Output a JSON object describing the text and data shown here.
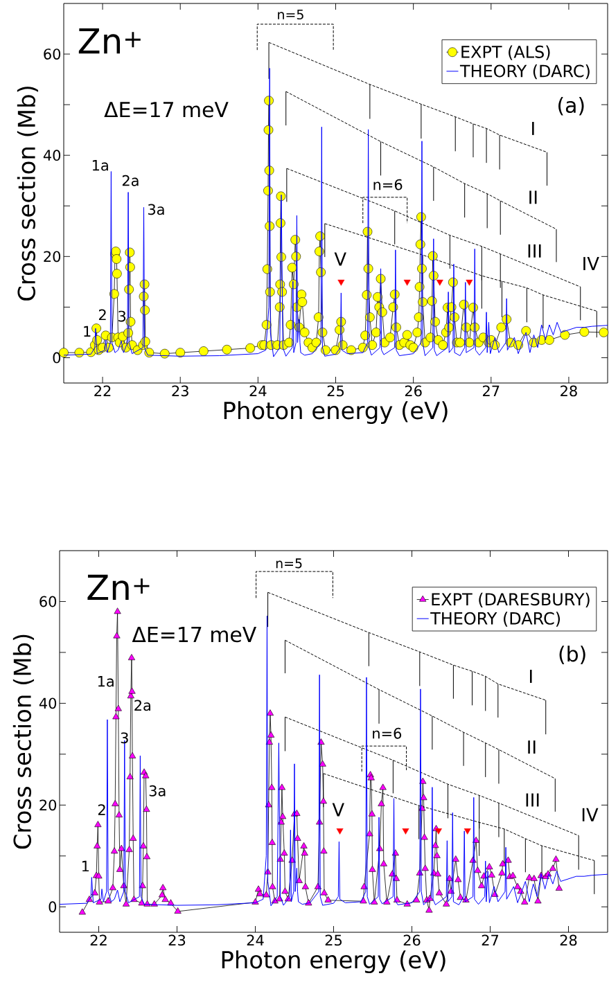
{
  "chart_data": [
    {
      "type": "line",
      "xlabel": "Photon energy (eV)",
      "ylabel": "Cross section (Mb)",
      "xlim": [
        21.5,
        28.5
      ],
      "ylim": [
        -5,
        70
      ],
      "xticks": [
        22,
        23,
        24,
        25,
        26,
        27,
        28
      ],
      "yticks": [
        0,
        {
          "value": 10,
          "label": null
        },
        20,
        {
          "value": 30,
          "label": null
        },
        40,
        {
          "value": 50,
          "label": null
        },
        60
      ],
      "legend": "top right",
      "annotations": [
        "Zn$^{+}$",
        "ΔE=17 meV",
        "(a)",
        "1a",
        "2a",
        "3a",
        "1",
        "2",
        "3",
        "n=5",
        "n=6",
        "I",
        "II",
        "III",
        "IV",
        "V"
      ],
      "series": [
        {
          "color": "#000000",
          "line_style": "dashed",
          "x": [
            24.14,
            25.44,
            26.1,
            26.54,
            26.77,
            26.94,
            27.11,
            27.72
          ],
          "values": [
            62.3,
            54.0,
            50.1,
            47.6,
            46.2,
            45.3,
            44.0,
            40.6
          ],
          "errors": [
            [
              55.1,
              62.3
            ],
            [
              47.2,
              54.0
            ],
            [
              43.3,
              50.1
            ],
            [
              40.8,
              47.6
            ],
            [
              39.6,
              46.2
            ],
            [
              38.5,
              45.3
            ],
            [
              37.2,
              44.0
            ],
            [
              34.0,
              40.6
            ]
          ]
        },
        {
          "color": "#000000",
          "line_style": "dashed",
          "x": [
            24.36,
            25.58,
            26.26,
            26.66,
            26.95,
            27.12,
            27.84
          ],
          "values": [
            52.6,
            42.7,
            37.7,
            34.4,
            32.4,
            31.0,
            25.4
          ],
          "errors": [
            [
              45.9,
              52.6
            ],
            [
              36.0,
              42.7
            ],
            [
              31.0,
              37.7
            ],
            [
              27.7,
              34.4
            ],
            [
              25.6,
              32.4
            ],
            [
              24.3,
              31.0
            ],
            [
              18.9,
              25.4
            ]
          ]
        },
        {
          "color": "#000000",
          "line_style": "dashed",
          "x": [
            24.37,
            25.76,
            26.47,
            26.88,
            27.12,
            28.15
          ],
          "values": [
            37.4,
            29.0,
            24.2,
            22.0,
            20.5,
            14.0
          ],
          "errors": [
            [
              30.8,
              37.4
            ],
            [
              22.4,
              29.0
            ],
            [
              17.6,
              24.2
            ],
            [
              15.3,
              22.0
            ],
            [
              13.8,
              20.5
            ],
            [
              7.4,
              14.0
            ]
          ]
        },
        {
          "color": "#000000",
          "line_style": "dashed",
          "x": [
            24.86,
            26.12,
            26.88,
            27.14,
            27.46,
            27.67,
            28.36
          ],
          "values": [
            26.5,
            20.3,
            16.2,
            15.1,
            13.8,
            12.4,
            9.2
          ],
          "errors": [
            [
              19.9,
              26.5
            ],
            [
              13.5,
              20.3
            ],
            [
              9.7,
              16.2
            ],
            [
              8.0,
              15.1
            ],
            [
              7.0,
              13.8
            ],
            [
              5.8,
              12.4
            ],
            [
              4.0,
              9.2
            ]
          ]
        },
        {
          "color": "#000000",
          "line_style": "dashed",
          "x": [
            23.99,
            23.99,
            24.97,
            24.97
          ],
          "values": [
            60.8,
            65.9,
            65.9,
            60.8
          ]
        },
        {
          "color": "#000000",
          "line_style": "dashed",
          "x": [
            25.35,
            25.35,
            25.92,
            25.92
          ],
          "values": [
            26.6,
            31.7,
            31.7,
            26.6
          ]
        },
        {
          "name": "EXPT (ALS)",
          "color": "#ffff00",
          "marker": "circle",
          "x": [
            21.5,
            21.7,
            21.85,
            21.9,
            21.92,
            21.93,
            21.95,
            22.0,
            22.04,
            22.08,
            22.12,
            22.15,
            22.16,
            22.17,
            22.18,
            22.185,
            22.2,
            22.22,
            22.26,
            22.3,
            22.33,
            22.34,
            22.35,
            22.355,
            22.36,
            22.38,
            22.45,
            22.52,
            22.53,
            22.54,
            22.545,
            22.55,
            22.6,
            22.8,
            23.0,
            23.3,
            23.6,
            23.9,
            24.05,
            24.08,
            24.11,
            24.12,
            24.13,
            24.135,
            24.14,
            24.145,
            24.15,
            24.155,
            24.17,
            24.25,
            24.28,
            24.285,
            24.29,
            24.295,
            24.3,
            24.31,
            24.33,
            24.4,
            24.42,
            24.44,
            24.46,
            24.48,
            24.49,
            24.5,
            24.53,
            24.56,
            24.57,
            24.6,
            24.65,
            24.7,
            24.75,
            24.78,
            24.79,
            24.8,
            24.81,
            24.83,
            24.87,
            25.0,
            25.05,
            25.07,
            25.09,
            25.2,
            25.35,
            25.38,
            25.4,
            25.41,
            25.42,
            25.44,
            25.47,
            25.52,
            25.54,
            25.56,
            25.58,
            25.6,
            25.63,
            25.7,
            25.74,
            25.76,
            25.78,
            25.82,
            25.88,
            25.92,
            25.96,
            26.0,
            26.05,
            26.07,
            26.08,
            26.09,
            26.1,
            26.11,
            26.12,
            26.15,
            26.22,
            26.24,
            26.25,
            26.26,
            26.28,
            26.32,
            26.38,
            26.42,
            26.44,
            26.46,
            26.49,
            26.51,
            26.53,
            26.56,
            26.6,
            26.65,
            26.68,
            26.72,
            26.77,
            26.79,
            26.84,
            26.9,
            26.97,
            27.0,
            27.05,
            27.13,
            27.2,
            27.25,
            27.35,
            27.45,
            27.55,
            27.65,
            27.75,
            27.95,
            28.2,
            28.45
          ],
          "values": [
            1.0,
            1.0,
            1.1,
            2.5,
            5.8,
            3.5,
            1.5,
            2.0,
            4.4,
            2.0,
            4.0,
            12.6,
            20.5,
            21,
            19.5,
            16.6,
            4,
            3.0,
            4.2,
            2,
            4.9,
            13.5,
            20.8,
            17.9,
            7.1,
            2.5,
            1.5,
            2.5,
            12.1,
            14.5,
            9.4,
            3.2,
            1.0,
            0.8,
            1.0,
            1.3,
            1.6,
            1.9,
            2.5,
            2.5,
            6.5,
            17.5,
            33,
            45,
            50.8,
            37,
            26,
            13,
            2.5,
            2.5,
            10,
            14.5,
            26.6,
            31.9,
            19.9,
            13,
            2.5,
            3,
            6.5,
            17.8,
            14.5,
            23.3,
            20,
            10,
            6,
            12.5,
            11,
            5,
            3,
            2,
            3,
            8,
            21,
            24,
            16.9,
            5,
            1.5,
            1.5,
            5.5,
            7.1,
            2.5,
            1.5,
            2,
            4.4,
            12.4,
            24.9,
            17.6,
            8,
            2.5,
            5,
            12,
            10,
            15.6,
            9,
            3,
            4,
            10,
            12.5,
            6,
            2.5,
            3,
            4.5,
            2.5,
            2,
            5,
            8,
            14,
            22.4,
            27.8,
            17.6,
            11,
            3,
            4,
            11.2,
            20.1,
            16.2,
            7.1,
            3.5,
            2.5,
            5,
            9.9,
            6,
            10,
            14.9,
            8,
            3,
            3,
            10.5,
            6,
            3,
            9.9,
            6,
            3,
            4,
            3,
            3.5,
            2.5,
            6,
            7.6,
            3,
            2.5,
            5.3,
            3.0,
            3.5,
            3.5,
            4.5,
            5.1,
            5.0
          ]
        },
        {
          "name": "THEORY (DARC)",
          "color": "#0000ff",
          "x": [
            21.5,
            21.85,
            21.9,
            21.91,
            21.93,
            22.03,
            22.04,
            22.06,
            22.1,
            22.11,
            22.12,
            22.16,
            22.2,
            22.24,
            22.27,
            22.32,
            22.33,
            22.34,
            22.38,
            22.52,
            22.53,
            22.54,
            22.58,
            23.0,
            23.5,
            24.0,
            24.1,
            24.14,
            24.15,
            24.16,
            24.2,
            24.28,
            24.3,
            24.32,
            24.36,
            24.44,
            24.45,
            24.46,
            24.49,
            24.5,
            24.51,
            24.53,
            24.54,
            24.55,
            24.6,
            24.7,
            24.81,
            24.82,
            24.83,
            24.86,
            25.0,
            25.06,
            25.07,
            25.08,
            25.15,
            25.35,
            25.41,
            25.42,
            25.43,
            25.46,
            25.57,
            25.58,
            25.59,
            25.62,
            25.76,
            25.77,
            25.78,
            25.82,
            26.0,
            26.1,
            26.11,
            26.12,
            26.15,
            26.25,
            26.26,
            26.27,
            26.3,
            26.44,
            26.45,
            26.46,
            26.51,
            26.52,
            26.53,
            26.6,
            26.66,
            26.67,
            26.68,
            26.78,
            26.79,
            26.8,
            26.85,
            26.93,
            26.94,
            26.95,
            26.97,
            26.99,
            27.05,
            27.1,
            27.19,
            27.2,
            27.21,
            27.3,
            27.35,
            27.45,
            27.5,
            27.55,
            27.6,
            27.65,
            27.7,
            27.75,
            27.8,
            27.85,
            27.9,
            28.0,
            28.1,
            28.2,
            28.3,
            28.5
          ],
          "values": [
            0.5,
            0.7,
            2,
            5.8,
            0.8,
            1.5,
            3.5,
            1.0,
            3,
            36.8,
            3,
            1.0,
            1.5,
            3.3,
            1.0,
            3,
            32.7,
            3,
            0.8,
            2,
            29.7,
            2,
            0.5,
            0.3,
            0.4,
            0.8,
            1.5,
            10,
            57.2,
            5,
            0.2,
            2,
            32.2,
            2,
            0.3,
            2,
            15.1,
            1,
            3,
            28.1,
            3,
            7.6,
            3,
            1,
            0.5,
            0.8,
            3,
            45.6,
            2,
            0.3,
            0.7,
            2,
            12.8,
            1.5,
            0.8,
            1,
            3,
            45.1,
            2,
            0.5,
            2,
            17.6,
            1.5,
            0.6,
            2,
            21.3,
            1.5,
            0.4,
            0.8,
            3,
            42.8,
            3,
            0.4,
            2,
            23.5,
            1.5,
            0.4,
            2,
            13,
            1,
            2,
            18.5,
            1,
            0.4,
            2,
            14.9,
            1,
            2,
            21.5,
            1.5,
            0.5,
            2,
            9,
            1,
            7,
            0.8,
            4,
            1,
            3,
            11.7,
            1.5,
            4,
            0.8,
            5,
            1,
            4.5,
            2,
            6.5,
            3.5,
            6.5,
            4.5,
            7,
            5,
            5.5,
            6,
            6,
            6.2,
            6.4
          ]
        },
        {
          "type": "scatter",
          "color": "#ff0000",
          "marker": "triangle",
          "x": [
            25.07,
            25.92,
            26.34,
            26.72
          ],
          "values": [
            15,
            15,
            15,
            15
          ]
        }
      ]
    },
    {
      "type": "line",
      "xlabel": "Photon energy (eV)",
      "ylabel": "Cross section (Mb)",
      "xlim": [
        21.5,
        28.5
      ],
      "ylim": [
        -5,
        70
      ],
      "xticks": [
        22,
        23,
        24,
        25,
        26,
        27,
        28
      ],
      "yticks": [
        0,
        {
          "value": 10,
          "label": null
        },
        20,
        {
          "value": 30,
          "label": null
        },
        40,
        {
          "value": 50,
          "label": null
        },
        60
      ],
      "legend": "top right",
      "annotations": [
        "Zn$^{+}$",
        "ΔE=17 meV",
        "(b)",
        "1a",
        "2a",
        "3a",
        "1",
        "2",
        "3",
        "n=5",
        "n=6",
        "I",
        "II",
        "III",
        "IV",
        "V"
      ],
      "series": [
        {
          "color": "#000000",
          "line_style": "dashed",
          "x": [
            24.16,
            25.45,
            26.1,
            26.53,
            26.77,
            26.94,
            27.1,
            27.71
          ],
          "values": [
            61.8,
            53.9,
            50.1,
            47.5,
            46.3,
            45.3,
            43.8,
            40.6
          ],
          "errors": [
            [
              55.0,
              61.8
            ],
            [
              47.3,
              53.9
            ],
            [
              43.4,
              50.1
            ],
            [
              40.9,
              47.5
            ],
            [
              39.6,
              46.3
            ],
            [
              38.5,
              45.3
            ],
            [
              37.2,
              43.8
            ],
            [
              33.9,
              40.6
            ]
          ]
        },
        {
          "color": "#000000",
          "line_style": "dashed",
          "x": [
            24.38,
            25.58,
            26.26,
            26.66,
            26.94,
            27.11,
            27.83
          ],
          "values": [
            52.4,
            42.7,
            37.5,
            34.3,
            32.2,
            30.9,
            25.2
          ],
          "errors": [
            [
              45.9,
              52.4
            ],
            [
              36.0,
              42.7
            ],
            [
              30.9,
              37.5
            ],
            [
              27.7,
              34.3
            ],
            [
              25.5,
              32.2
            ],
            [
              24.2,
              30.9
            ],
            [
              18.7,
              25.2
            ]
          ]
        },
        {
          "color": "#000000",
          "line_style": "dashed",
          "x": [
            24.38,
            25.76,
            26.46,
            26.86,
            27.11,
            28.13
          ],
          "values": [
            37.3,
            28.8,
            24.1,
            21.9,
            20.4,
            14.0
          ],
          "errors": [
            [
              30.6,
              37.3
            ],
            [
              22.3,
              28.8
            ],
            [
              17.4,
              24.1
            ],
            [
              15.4,
              21.9
            ],
            [
              13.7,
              20.4
            ],
            [
              7.3,
              14.0
            ]
          ]
        },
        {
          "color": "#000000",
          "line_style": "dashed",
          "x": [
            24.87,
            26.09,
            26.86,
            27.18,
            27.45,
            27.66,
            28.33
          ],
          "values": [
            26.2,
            19.9,
            16.6,
            15.3,
            13.4,
            12.0,
            9.1
          ],
          "errors": [
            [
              19.6,
              26.2
            ],
            [
              13.3,
              19.9
            ],
            [
              10.0,
              16.6
            ],
            [
              8.5,
              15.3
            ],
            [
              6.8,
              13.4
            ],
            [
              5.5,
              12.0
            ],
            [
              2.5,
              9.1
            ]
          ]
        },
        {
          "color": "#000000",
          "line_style": "dashed",
          "x": [
            24.01,
            24.01,
            24.99,
            24.99
          ],
          "values": [
            60.7,
            65.9,
            65.9,
            60.7
          ]
        },
        {
          "color": "#000000",
          "line_style": "dashed",
          "x": [
            25.36,
            25.36,
            25.93,
            25.93
          ],
          "values": [
            26.6,
            31.6,
            31.6,
            26.6
          ]
        },
        {
          "name": "EXPT (DARESBURY)",
          "color": "#ff00ff",
          "marker": "triangle",
          "x": [
            21.79,
            21.88,
            21.95,
            21.97,
            21.98,
            21.99,
            22.0,
            22.01,
            22.12,
            22.18,
            22.2,
            22.21,
            22.22,
            22.23,
            22.24,
            22.25,
            22.26,
            22.27,
            22.29,
            22.32,
            22.35,
            22.39,
            22.4,
            22.41,
            22.42,
            22.425,
            22.43,
            22.44,
            22.45,
            22.55,
            22.56,
            22.57,
            22.58,
            22.6,
            22.61,
            22.615,
            22.62,
            22.71,
            22.81,
            22.82,
            22.85,
            22.92,
            23.01,
            24.0,
            24.04,
            24.06,
            24.14,
            24.16,
            24.17,
            24.18,
            24.19,
            24.2,
            24.21,
            24.215,
            24.22,
            24.25,
            24.31,
            24.32,
            24.33,
            24.34,
            24.35,
            24.37,
            24.38,
            24.42,
            24.47,
            24.5,
            24.53,
            24.54,
            24.56,
            24.62,
            24.63,
            24.64,
            24.68,
            24.8,
            24.82,
            24.84,
            24.86,
            24.87,
            24.875,
            24.88,
            24.93,
            25.38,
            25.39,
            25.46,
            25.47,
            25.48,
            25.49,
            25.495,
            25.52,
            25.59,
            25.61,
            25.63,
            25.64,
            25.68,
            25.75,
            25.79,
            25.8,
            25.81,
            25.94,
            26.06,
            26.1,
            26.13,
            26.14,
            26.15,
            26.16,
            26.17,
            26.19,
            26.22,
            26.23,
            26.28,
            26.3,
            26.31,
            26.32,
            26.33,
            26.35,
            26.44,
            26.48,
            26.5,
            26.56,
            26.59,
            26.62,
            26.69,
            26.78,
            26.82,
            26.84,
            26.89,
            26.92,
            26.99,
            27.02,
            27.06,
            27.15,
            27.16,
            27.23,
            27.25,
            27.29,
            27.35,
            27.39,
            27.44,
            27.5,
            27.56,
            27.61,
            27.65,
            27.71,
            27.74,
            27.8,
            27.84,
            27.88
          ],
          "values": [
            -1.1,
            1.4,
            2.7,
            6.1,
            11.9,
            16.1,
            6.0,
            0.9,
            1.1,
            3.7,
            10.9,
            20.2,
            37.3,
            53.2,
            58.0,
            38.9,
            18.0,
            7.3,
            11.4,
            4.1,
            0.5,
            11.2,
            25.5,
            41.4,
            48.9,
            42.3,
            29.6,
            13.4,
            1.4,
            0.7,
            4.1,
            11.9,
            26.4,
            25.7,
            19.1,
            9.8,
            0.5,
            0.5,
            2.3,
            3.7,
            1.4,
            0.7,
            -0.9,
            0.9,
            3.4,
            2.5,
            2.3,
            6.8,
            20.0,
            32.3,
            38.0,
            33.7,
            23.4,
            12.6,
            3.9,
            1.1,
            1.5,
            9.3,
            16.6,
            23.4,
            17.7,
            10.5,
            3.0,
            1.5,
            9.1,
            18.2,
            18.3,
            13.4,
            5.1,
            11.9,
            10.5,
            3.9,
            0.7,
            3.9,
            16.6,
            32.3,
            28.0,
            20.7,
            10.9,
            2.7,
            1.3,
            1.1,
            3.9,
            14.3,
            25.9,
            25.3,
            18.2,
            7.3,
            0.9,
            11.4,
            20.2,
            23.4,
            8.4,
            0.9,
            6.4,
            10.5,
            5.5,
            1.3,
            0.5,
            1.3,
            6.6,
            19.3,
            24.6,
            21.4,
            13.6,
            7.5,
            1.3,
            -0.7,
            1.6,
            6.6,
            12.0,
            15.3,
            10.0,
            6.4,
            2.7,
            0.5,
            5.5,
            3.0,
            9.3,
            5.3,
            1.8,
            1.3,
            9.1,
            13.0,
            7.1,
            4.1,
            6.0,
            7.8,
            6.2,
            2.4,
            6.6,
            8.4,
            9.1,
            5.9,
            6.1,
            3.9,
            3.0,
            0.9,
            5.7,
            5.5,
            1.1,
            6.1,
            5.9,
            6.4,
            7.5,
            9.3,
            3.6
          ]
        },
        {
          "name": "THEORY (DARC)",
          "color": "#0000ff",
          "x": [
            21.5,
            21.85,
            21.9,
            21.91,
            21.93,
            22.03,
            22.04,
            22.06,
            22.1,
            22.11,
            22.12,
            22.16,
            22.2,
            22.24,
            22.27,
            22.32,
            22.33,
            22.34,
            22.38,
            22.52,
            22.53,
            22.54,
            22.58,
            23.0,
            23.5,
            24.0,
            24.1,
            24.14,
            24.15,
            24.16,
            24.2,
            24.28,
            24.3,
            24.32,
            24.36,
            24.44,
            24.45,
            24.46,
            24.49,
            24.5,
            24.51,
            24.53,
            24.54,
            24.55,
            24.6,
            24.7,
            24.81,
            24.82,
            24.83,
            24.86,
            25.0,
            25.06,
            25.07,
            25.08,
            25.15,
            25.35,
            25.41,
            25.42,
            25.43,
            25.46,
            25.57,
            25.58,
            25.59,
            25.62,
            25.76,
            25.77,
            25.78,
            25.82,
            26.0,
            26.1,
            26.11,
            26.12,
            26.15,
            26.25,
            26.26,
            26.27,
            26.3,
            26.44,
            26.45,
            26.46,
            26.51,
            26.52,
            26.53,
            26.6,
            26.66,
            26.67,
            26.68,
            26.78,
            26.79,
            26.8,
            26.85,
            26.93,
            26.94,
            26.95,
            26.97,
            26.99,
            27.05,
            27.1,
            27.19,
            27.2,
            27.21,
            27.3,
            27.35,
            27.45,
            27.5,
            27.55,
            27.6,
            27.65,
            27.7,
            27.75,
            27.8,
            27.85,
            27.9,
            28.0,
            28.1,
            28.2,
            28.3,
            28.5
          ],
          "values": [
            0.5,
            0.7,
            2,
            5.8,
            0.8,
            1.5,
            3.5,
            1.0,
            3,
            36.8,
            3,
            1.0,
            1.5,
            3.3,
            1.0,
            3,
            32.7,
            3,
            0.8,
            2,
            29.7,
            2,
            0.5,
            0.3,
            0.4,
            0.8,
            1.5,
            10,
            57.2,
            5,
            0.2,
            2,
            32.2,
            2,
            0.3,
            2,
            15.1,
            1,
            3,
            28.1,
            3,
            7.6,
            3,
            1,
            0.5,
            0.8,
            3,
            45.6,
            2,
            0.3,
            0.7,
            2,
            12.8,
            1.5,
            0.8,
            1,
            3,
            45.1,
            2,
            0.5,
            2,
            17.6,
            1.5,
            0.6,
            2,
            21.3,
            1.5,
            0.4,
            0.8,
            3,
            42.8,
            3,
            0.4,
            2,
            23.5,
            1.5,
            0.4,
            2,
            13,
            1,
            2,
            18.5,
            1,
            0.4,
            2,
            14.9,
            1,
            2,
            21.5,
            1.5,
            0.5,
            2,
            9,
            1,
            7,
            0.8,
            4,
            1,
            3,
            11.7,
            1.5,
            4,
            0.8,
            5,
            1,
            4.5,
            2,
            6.5,
            3.5,
            6.5,
            4.5,
            7,
            5,
            5.5,
            6,
            6,
            6.2,
            6.4
          ]
        },
        {
          "type": "scatter",
          "color": "#ff0000",
          "marker": "triangle",
          "x": [
            25.08,
            25.92,
            26.34,
            26.71
          ],
          "values": [
            15,
            15,
            15,
            15
          ]
        }
      ]
    }
  ]
}
